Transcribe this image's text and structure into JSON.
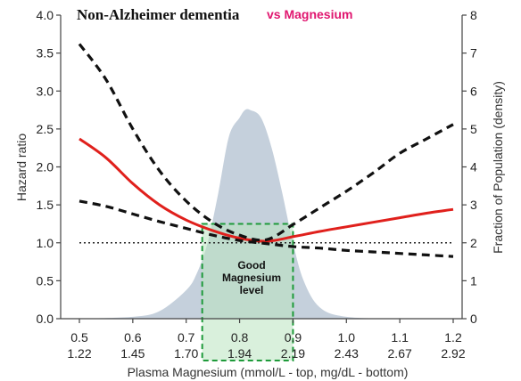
{
  "colors": {
    "hr_line": "#e0201c",
    "ci_line": "#111111",
    "density_fill": "#c5d0dc",
    "box_stroke": "#1e9a3a",
    "box_fill": "#b9e3bf",
    "subtitle": "#e0166f"
  },
  "chart_data": {
    "type": "line",
    "title": "Non-Alzheimer dementia",
    "subtitle": "vs Magnesium",
    "xlabel": "Plasma Magnesium (mmol/L - top, mg/dL - bottom)",
    "ylabel_left": "Hazard ratio",
    "ylabel_right": "Fraction of Population (density)",
    "xlim": [
      0.5,
      1.2
    ],
    "ylim_left": [
      0,
      4.0
    ],
    "ylim_right": [
      0,
      8
    ],
    "x_ticks_top": [
      "0.5",
      "0.6",
      "0.7",
      "0.8",
      "0.9",
      "1.0",
      "1.1",
      "1.2"
    ],
    "x_ticks_bottom": [
      "1.22",
      "1.45",
      "1.70",
      "1.94",
      "2.19",
      "2.43",
      "2.67",
      "2.92"
    ],
    "y_ticks_left": [
      "0.0",
      "0.5",
      "1.0",
      "1.5",
      "2.0",
      "2.5",
      "3.0",
      "3.5",
      "4.0"
    ],
    "y_ticks_right": [
      "0",
      "1",
      "2",
      "3",
      "4",
      "5",
      "6",
      "7",
      "8"
    ],
    "reference_line": 1.0,
    "series": [
      {
        "role": "hazard_ratio",
        "style": "solid",
        "x": [
          0.5,
          0.55,
          0.6,
          0.65,
          0.7,
          0.75,
          0.8,
          0.85,
          0.9,
          0.95,
          1.0,
          1.05,
          1.1,
          1.15,
          1.2
        ],
        "y": [
          2.37,
          2.12,
          1.78,
          1.5,
          1.3,
          1.16,
          1.06,
          1.02,
          1.08,
          1.15,
          1.21,
          1.27,
          1.33,
          1.39,
          1.44
        ]
      },
      {
        "role": "ci_upper",
        "style": "dashed",
        "x": [
          0.5,
          0.55,
          0.6,
          0.65,
          0.7,
          0.75,
          0.8,
          0.85,
          0.9,
          0.95,
          1.0,
          1.05,
          1.1,
          1.15,
          1.2
        ],
        "y": [
          3.62,
          3.15,
          2.5,
          1.95,
          1.55,
          1.27,
          1.1,
          1.04,
          1.24,
          1.46,
          1.68,
          1.92,
          2.18,
          2.37,
          2.56
        ]
      },
      {
        "role": "ci_lower",
        "style": "dashed",
        "x": [
          0.5,
          0.55,
          0.6,
          0.65,
          0.7,
          0.75,
          0.8,
          0.85,
          0.9,
          0.95,
          1.0,
          1.05,
          1.1,
          1.15,
          1.2
        ],
        "y": [
          1.55,
          1.48,
          1.38,
          1.28,
          1.19,
          1.1,
          1.03,
          0.99,
          0.95,
          0.93,
          0.9,
          0.88,
          0.86,
          0.84,
          0.82
        ]
      }
    ],
    "density": {
      "axis": "right",
      "x": [
        0.5,
        0.6,
        0.65,
        0.7,
        0.72,
        0.74,
        0.76,
        0.78,
        0.8,
        0.81,
        0.82,
        0.84,
        0.86,
        0.88,
        0.9,
        0.92,
        0.95,
        1.0,
        1.1,
        1.2
      ],
      "y": [
        0.0,
        0.05,
        0.2,
        0.75,
        1.2,
        2.0,
        3.3,
        4.8,
        5.3,
        5.5,
        5.5,
        5.3,
        4.5,
        3.3,
        2.0,
        1.0,
        0.3,
        0.05,
        0.0,
        0.0
      ]
    },
    "annotation": {
      "lines": [
        "Good",
        "Magnesium",
        "level"
      ],
      "x_range": [
        0.73,
        0.9
      ],
      "y_top_left_axis": 1.25
    }
  }
}
